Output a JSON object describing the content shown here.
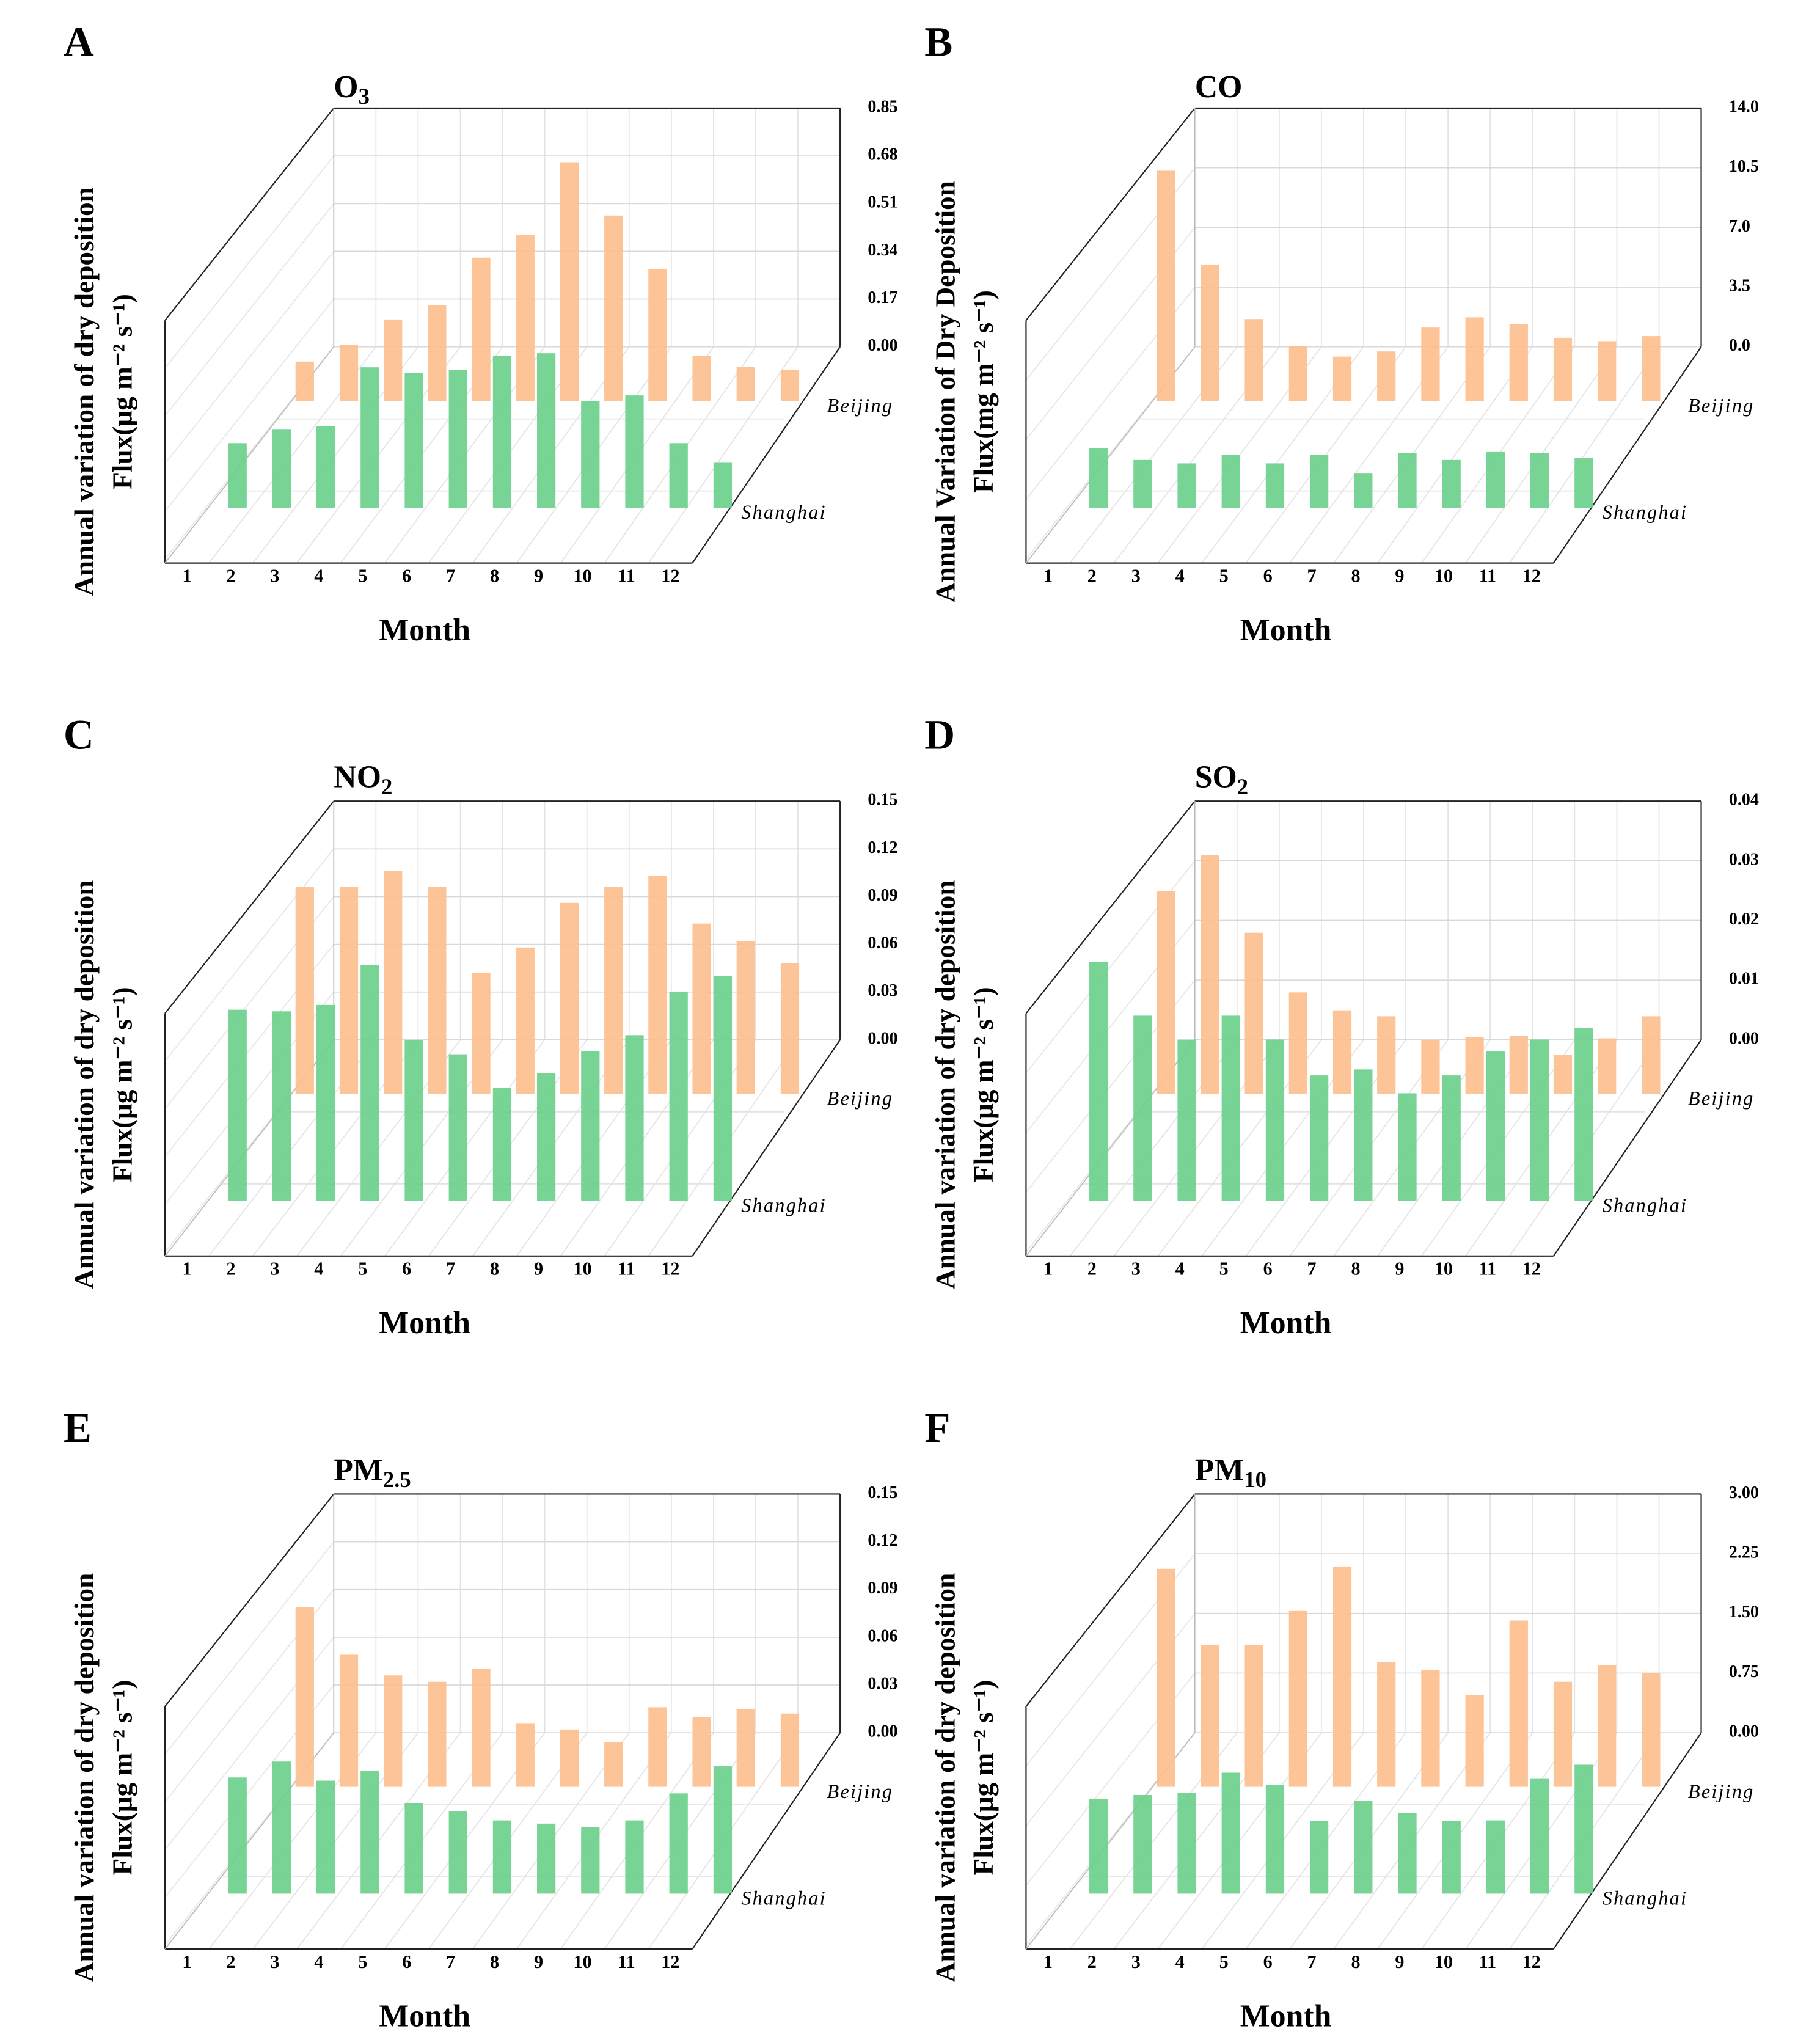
{
  "chart_data": [
    {
      "type": "bar3d",
      "panel": "A",
      "title": "O",
      "title_sub": "3",
      "ylabel": [
        "Annual variation of dry deposition",
        "Flux(μg m⁻² s⁻¹)"
      ],
      "xlabel": "Month",
      "categories": [
        "1",
        "2",
        "3",
        "4",
        "5",
        "6",
        "7",
        "8",
        "9",
        "10",
        "11",
        "12"
      ],
      "series": [
        {
          "name": "Beijing",
          "color": "#fdbf8e",
          "values": [
            0.14,
            0.2,
            0.29,
            0.34,
            0.51,
            0.59,
            0.85,
            0.66,
            0.47,
            0.16,
            0.12,
            0.11
          ]
        },
        {
          "name": "Shanghai",
          "color": "#6bd08c",
          "values": [
            0.23,
            0.28,
            0.29,
            0.5,
            0.48,
            0.49,
            0.54,
            0.55,
            0.38,
            0.4,
            0.23,
            0.16
          ]
        }
      ],
      "ylim": [
        0,
        0.85
      ],
      "yticks": [
        {
          "value": 0,
          "label": "0.00"
        },
        0.17,
        0.34,
        0.51,
        0.68,
        0.85
      ],
      "grid": true
    },
    {
      "type": "bar3d",
      "panel": "B",
      "title": "CO",
      "ylabel": [
        "Annual Variation of Dry Deposition",
        "Flux(mg m⁻² s⁻¹)"
      ],
      "xlabel": "Month",
      "categories": [
        "1",
        "2",
        "3",
        "4",
        "5",
        "6",
        "7",
        "8",
        "9",
        "10",
        "11",
        "12"
      ],
      "series": [
        {
          "name": "Beijing",
          "color": "#fdbf8e",
          "values": [
            13.5,
            8.0,
            4.8,
            3.2,
            2.6,
            2.9,
            4.3,
            4.9,
            4.5,
            3.7,
            3.5,
            3.8
          ]
        },
        {
          "name": "Shanghai",
          "color": "#6bd08c",
          "values": [
            3.5,
            2.8,
            2.6,
            3.1,
            2.6,
            3.1,
            2.0,
            3.2,
            2.8,
            3.3,
            3.2,
            2.9
          ]
        }
      ],
      "ylim": [
        0,
        14
      ],
      "yticks": [
        {
          "value": 0,
          "label": "0.0"
        },
        3.5,
        {
          "value": 7,
          "label": "7.0"
        },
        10.5,
        {
          "value": 14,
          "label": "14.0"
        }
      ],
      "grid": true
    },
    {
      "type": "bar3d",
      "panel": "C",
      "title": "NO",
      "title_sub": "2",
      "ylabel": [
        "Annual variation of dry deposition",
        "Flux(μg m⁻² s⁻¹)"
      ],
      "xlabel": "Month",
      "categories": [
        "1",
        "2",
        "3",
        "4",
        "5",
        "6",
        "7",
        "8",
        "9",
        "10",
        "11",
        "12"
      ],
      "series": [
        {
          "name": "Beijing",
          "color": "#fdbf8e",
          "values": [
            0.13,
            0.13,
            0.14,
            0.13,
            0.076,
            0.092,
            0.12,
            0.13,
            0.137,
            0.107,
            0.096,
            0.082
          ]
        },
        {
          "name": "Shanghai",
          "color": "#6bd08c",
          "values": [
            0.12,
            0.119,
            0.123,
            0.148,
            0.101,
            0.092,
            0.071,
            0.08,
            0.094,
            0.104,
            0.131,
            0.141
          ]
        }
      ],
      "ylim": [
        0,
        0.15
      ],
      "yticks": [
        {
          "value": 0,
          "label": "0.00"
        },
        0.03,
        0.06,
        0.09,
        0.12,
        0.15
      ],
      "grid": true
    },
    {
      "type": "bar3d",
      "panel": "D",
      "title": "SO",
      "title_sub": "2",
      "ylabel": [
        "Annual variation of dry deposition",
        "Flux(μg m⁻² s⁻¹)"
      ],
      "xlabel": "Month",
      "categories": [
        "1",
        "2",
        "3",
        "4",
        "5",
        "6",
        "7",
        "8",
        "9",
        "10",
        "11",
        "12"
      ],
      "series": [
        {
          "name": "Beijing",
          "color": "#fdbf8e",
          "values": [
            0.034,
            0.04,
            0.027,
            0.017,
            0.014,
            0.013,
            0.009,
            0.0095,
            0.0097,
            0.0065,
            0.0093,
            0.013
          ]
        },
        {
          "name": "Shanghai",
          "color": "#6bd08c",
          "values": [
            0.04,
            0.031,
            0.027,
            0.031,
            0.027,
            0.021,
            0.022,
            0.018,
            0.021,
            0.025,
            0.027,
            0.029
          ]
        }
      ],
      "ylim": [
        0,
        0.04
      ],
      "yticks": [
        {
          "value": 0,
          "label": "0.00"
        },
        0.01,
        0.02,
        0.03,
        0.04
      ],
      "grid": true
    },
    {
      "type": "bar3d",
      "panel": "E",
      "title": "PM",
      "title_sub": "2.5",
      "ylabel": [
        "Annual variation of dry deposition",
        "Flux(μg m⁻² s⁻¹)"
      ],
      "xlabel": "Month",
      "categories": [
        "1",
        "2",
        "3",
        "4",
        "5",
        "6",
        "7",
        "8",
        "9",
        "10",
        "11",
        "12"
      ],
      "series": [
        {
          "name": "Beijing",
          "color": "#fdbf8e",
          "values": [
            0.113,
            0.083,
            0.07,
            0.066,
            0.074,
            0.04,
            0.036,
            0.028,
            0.05,
            0.044,
            0.049,
            0.046
          ]
        },
        {
          "name": "Shanghai",
          "color": "#6bd08c",
          "values": [
            0.073,
            0.083,
            0.071,
            0.077,
            0.057,
            0.052,
            0.046,
            0.044,
            0.042,
            0.046,
            0.063,
            0.08
          ]
        }
      ],
      "ylim": [
        0,
        0.15
      ],
      "yticks": [
        {
          "value": 0,
          "label": "0.00"
        },
        0.03,
        0.06,
        0.09,
        0.12,
        0.15
      ],
      "grid": true
    },
    {
      "type": "bar3d",
      "panel": "F",
      "title": "PM",
      "title_sub": "10",
      "ylabel": [
        "Annual variation of dry deposition",
        "Flux(μg m⁻² s⁻¹)"
      ],
      "xlabel": "Month",
      "categories": [
        "1",
        "2",
        "3",
        "4",
        "5",
        "6",
        "7",
        "8",
        "9",
        "10",
        "11",
        "12"
      ],
      "series": [
        {
          "name": "Beijing",
          "color": "#fdbf8e",
          "values": [
            2.74,
            1.78,
            1.78,
            2.21,
            2.77,
            1.57,
            1.47,
            1.15,
            2.09,
            1.32,
            1.53,
            1.43
          ]
        },
        {
          "name": "Shanghai",
          "color": "#6bd08c",
          "values": [
            1.19,
            1.24,
            1.27,
            1.52,
            1.37,
            0.91,
            1.17,
            1.01,
            0.91,
            0.92,
            1.45,
            1.62
          ]
        }
      ],
      "ylim": [
        0,
        3
      ],
      "yticks": [
        {
          "value": 0,
          "label": "0.00"
        },
        0.75,
        {
          "value": 1.5,
          "label": "1.50"
        },
        2.25,
        {
          "value": 3,
          "label": "3.00"
        }
      ],
      "grid": true
    }
  ]
}
